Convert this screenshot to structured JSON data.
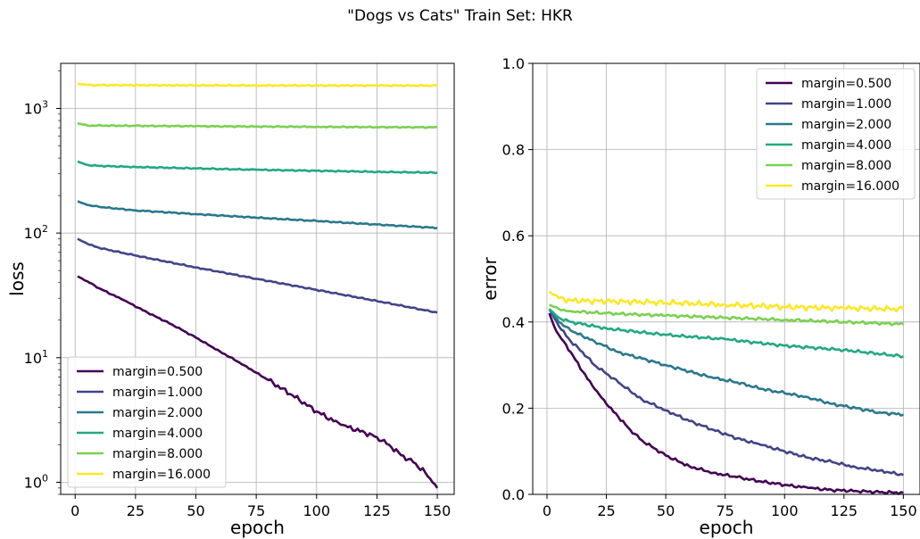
{
  "figure": {
    "title": "\"Dogs vs Cats\" Train Set: HKR"
  },
  "colors": {
    "margin=0.500": "#440154",
    "margin=1.000": "#414487",
    "margin=2.000": "#2a788e",
    "margin=4.000": "#22a884",
    "margin=8.000": "#7ad151",
    "margin=16.000": "#fde725"
  },
  "chart_data": [
    {
      "type": "line",
      "title": "",
      "xlabel": "epoch",
      "ylabel": "loss",
      "xscale": "linear",
      "yscale": "log",
      "xlim": [
        -6,
        157
      ],
      "ylim": [
        0.8,
        2300
      ],
      "xticks": [
        0,
        25,
        50,
        75,
        100,
        125,
        150
      ],
      "yticks": [
        1,
        10,
        100,
        1000
      ],
      "ytick_labels": [
        "10^0",
        "10^1",
        "10^2",
        "10^3"
      ],
      "grid": true,
      "legend_loc": "lower-left",
      "series": [
        {
          "name": "margin=0.500",
          "color": "#440154",
          "x": [
            1,
            5,
            10,
            20,
            30,
            40,
            50,
            60,
            70,
            80,
            90,
            100,
            110,
            120,
            125,
            130,
            135,
            140,
            145,
            148,
            150
          ],
          "y": [
            45,
            41,
            36,
            29,
            23,
            18.5,
            14.5,
            11.2,
            8.7,
            6.6,
            5.0,
            3.7,
            2.9,
            2.5,
            2.3,
            2.0,
            1.65,
            1.45,
            1.2,
            1.0,
            0.9
          ]
        },
        {
          "name": "margin=1.000",
          "color": "#414487",
          "x": [
            1,
            5,
            10,
            25,
            50,
            75,
            100,
            125,
            150
          ],
          "y": [
            90,
            82,
            76,
            66,
            53,
            43,
            35,
            28.5,
            23
          ]
        },
        {
          "name": "margin=2.000",
          "color": "#2a788e",
          "x": [
            1,
            5,
            10,
            25,
            50,
            75,
            100,
            125,
            150
          ],
          "y": [
            180,
            168,
            162,
            152,
            142,
            133,
            125,
            117,
            110
          ]
        },
        {
          "name": "margin=4.000",
          "color": "#22a884",
          "x": [
            1,
            5,
            10,
            25,
            50,
            75,
            100,
            125,
            150
          ],
          "y": [
            375,
            352,
            346,
            339,
            330,
            322,
            316,
            310,
            305
          ]
        },
        {
          "name": "margin=8.000",
          "color": "#7ad151",
          "x": [
            1,
            5,
            25,
            50,
            75,
            100,
            125,
            150
          ],
          "y": [
            760,
            730,
            725,
            720,
            716,
            712,
            708,
            705
          ]
        },
        {
          "name": "margin=16.000",
          "color": "#fde725",
          "x": [
            1,
            5,
            25,
            50,
            75,
            100,
            125,
            150
          ],
          "y": [
            1580,
            1540,
            1535,
            1532,
            1530,
            1528,
            1526,
            1525
          ]
        }
      ]
    },
    {
      "type": "line",
      "title": "",
      "xlabel": "epoch",
      "ylabel": "error",
      "xscale": "linear",
      "yscale": "linear",
      "xlim": [
        -6,
        157
      ],
      "ylim": [
        0.0,
        1.0
      ],
      "xticks": [
        0,
        25,
        50,
        75,
        100,
        125,
        150
      ],
      "yticks": [
        0.0,
        0.2,
        0.4,
        0.6,
        0.8,
        1.0
      ],
      "ytick_labels": [
        "0.0",
        "0.2",
        "0.4",
        "0.6",
        "0.8",
        "1.0"
      ],
      "grid": true,
      "legend_loc": "upper-right",
      "series": [
        {
          "name": "margin=0.500",
          "color": "#440154",
          "x": [
            1,
            3,
            5,
            7,
            10,
            15,
            20,
            25,
            30,
            35,
            40,
            50,
            60,
            70,
            80,
            90,
            100,
            110,
            120,
            130,
            140,
            150
          ],
          "y": [
            0.42,
            0.39,
            0.37,
            0.355,
            0.33,
            0.285,
            0.245,
            0.21,
            0.18,
            0.15,
            0.125,
            0.09,
            0.065,
            0.05,
            0.04,
            0.03,
            0.022,
            0.015,
            0.01,
            0.008,
            0.005,
            0.004
          ]
        },
        {
          "name": "margin=1.000",
          "color": "#414487",
          "x": [
            1,
            5,
            10,
            15,
            20,
            25,
            30,
            40,
            50,
            60,
            70,
            80,
            90,
            100,
            110,
            120,
            130,
            140,
            150
          ],
          "y": [
            0.43,
            0.39,
            0.355,
            0.33,
            0.3,
            0.28,
            0.26,
            0.22,
            0.195,
            0.17,
            0.15,
            0.13,
            0.115,
            0.1,
            0.085,
            0.075,
            0.063,
            0.055,
            0.045
          ]
        },
        {
          "name": "margin=2.000",
          "color": "#2a788e",
          "x": [
            1,
            5,
            10,
            20,
            30,
            40,
            50,
            60,
            70,
            80,
            90,
            100,
            110,
            120,
            130,
            140,
            150
          ],
          "y": [
            0.43,
            0.4,
            0.38,
            0.355,
            0.33,
            0.315,
            0.3,
            0.285,
            0.27,
            0.26,
            0.245,
            0.235,
            0.225,
            0.21,
            0.2,
            0.19,
            0.185
          ]
        },
        {
          "name": "margin=4.000",
          "color": "#22a884",
          "x": [
            1,
            5,
            10,
            25,
            50,
            75,
            100,
            125,
            150
          ],
          "y": [
            0.43,
            0.41,
            0.4,
            0.385,
            0.37,
            0.36,
            0.345,
            0.335,
            0.32
          ]
        },
        {
          "name": "margin=8.000",
          "color": "#7ad151",
          "x": [
            1,
            5,
            10,
            25,
            50,
            75,
            100,
            125,
            150
          ],
          "y": [
            0.44,
            0.43,
            0.425,
            0.42,
            0.415,
            0.41,
            0.405,
            0.4,
            0.395
          ]
        },
        {
          "name": "margin=16.000",
          "color": "#fde725",
          "x": [
            1,
            5,
            10,
            25,
            50,
            75,
            100,
            125,
            150
          ],
          "y": [
            0.47,
            0.455,
            0.45,
            0.448,
            0.445,
            0.44,
            0.435,
            0.432,
            0.43
          ]
        }
      ]
    }
  ]
}
